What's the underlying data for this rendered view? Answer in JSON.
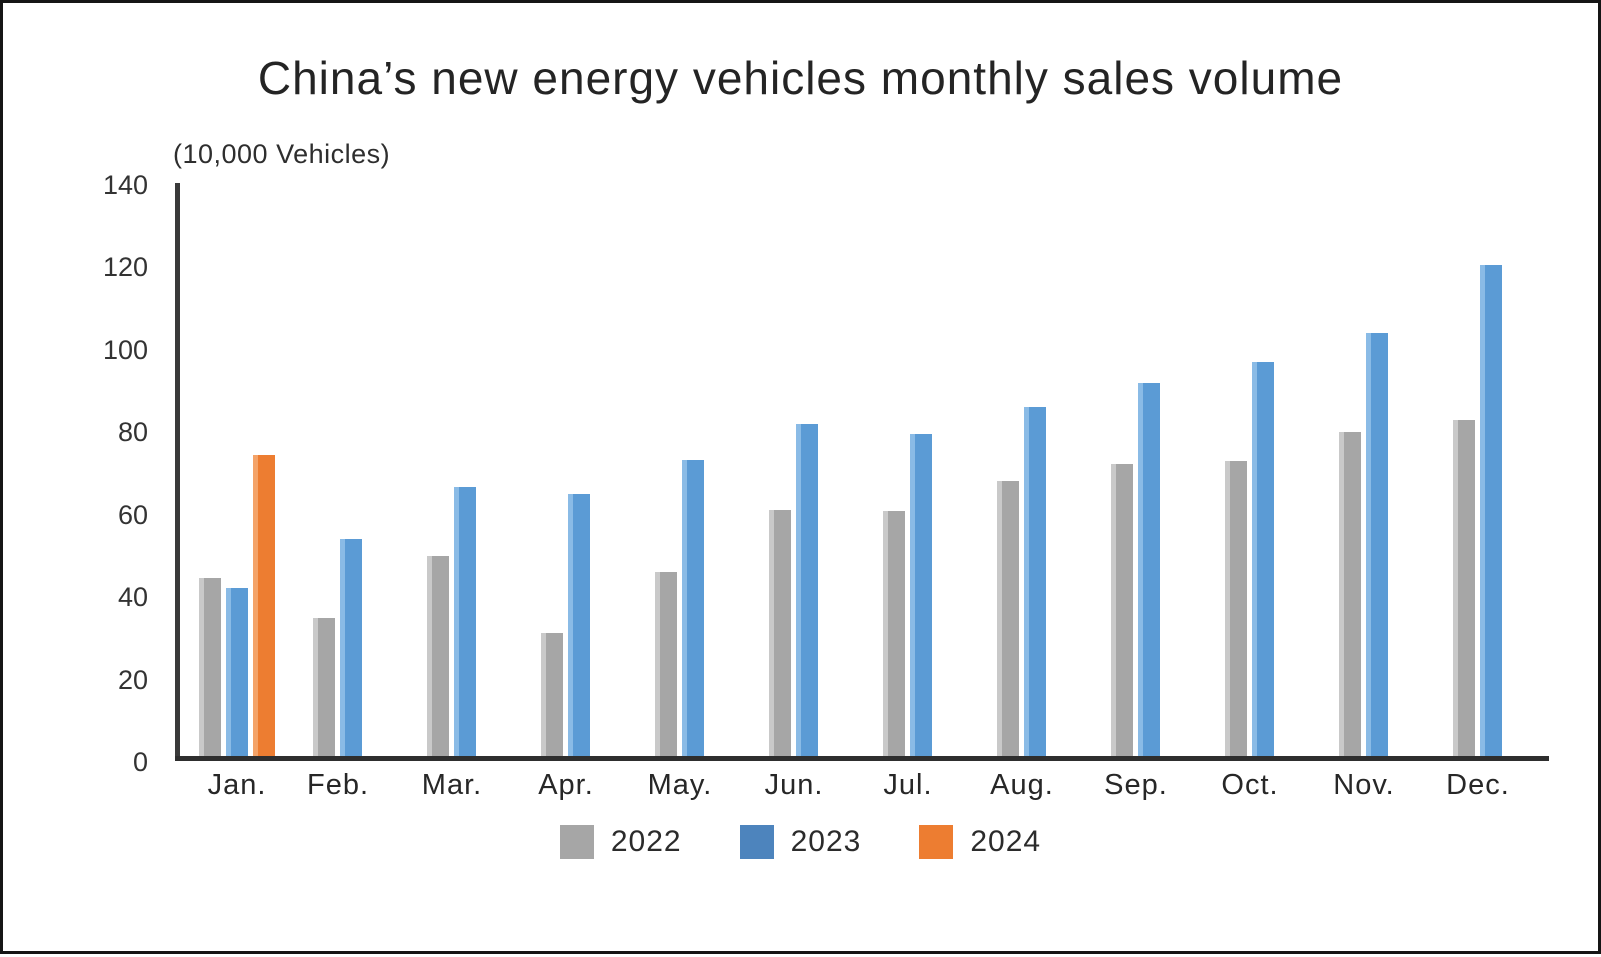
{
  "title": "China’s new energy vehicles monthly sales volume",
  "chart_data": {
    "type": "bar",
    "title": "China’s new energy vehicles monthly sales volume",
    "unit_label": "(10,000 Vehicles)",
    "xlabel": "",
    "ylabel": "(10,000 Vehicles)",
    "ylim": [
      0,
      140
    ],
    "yticks": [
      0,
      20,
      40,
      60,
      80,
      100,
      120,
      140
    ],
    "grid": false,
    "legend_position": "bottom",
    "categories": [
      "Jan.",
      "Feb.",
      "Mar.",
      "Apr.",
      "May.",
      "Jun.",
      "Jul.",
      "Aug.",
      "Sep.",
      "Oct.",
      "Nov.",
      "Dec."
    ],
    "series": [
      {
        "name": "2022",
        "color": "#a6a6a6",
        "edge_color": "#c9c9c9",
        "legend_color": "#a6a6a6",
        "values": [
          43.1,
          33.4,
          48.4,
          29.9,
          44.7,
          59.6,
          59.3,
          66.6,
          70.8,
          71.4,
          78.6,
          81.4
        ]
      },
      {
        "name": "2023",
        "color": "#5b9bd5",
        "edge_color": "#8abbe6",
        "legend_color": "#4d84bd",
        "values": [
          40.8,
          52.5,
          65.3,
          63.6,
          71.7,
          80.6,
          78.0,
          84.6,
          90.4,
          95.6,
          102.6,
          119.1
        ]
      },
      {
        "name": "2024",
        "color": "#ed7d31",
        "edge_color": "#f4a368",
        "legend_color": "#ed7d31",
        "values": [
          72.9,
          null,
          null,
          null,
          null,
          null,
          null,
          null,
          null,
          null,
          null,
          null
        ]
      }
    ]
  }
}
